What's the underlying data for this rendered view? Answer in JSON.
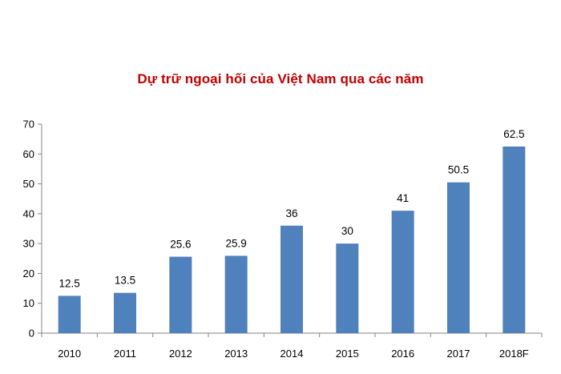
{
  "chart_data": {
    "type": "bar",
    "title": "Dự trữ ngoại hối của Việt Nam qua các năm",
    "xlabel": "",
    "ylabel": "",
    "categories": [
      "2010",
      "2011",
      "2012",
      "2013",
      "2014",
      "2015",
      "2016",
      "2017",
      "2018F"
    ],
    "values": [
      12.5,
      13.5,
      25.6,
      25.9,
      36,
      30,
      41,
      50.5,
      62.5
    ],
    "data_labels": [
      "12.5",
      "13.5",
      "25.6",
      "25.9",
      "36",
      "30",
      "41",
      "50.5",
      "62.5"
    ],
    "ylim": [
      0,
      70
    ],
    "yticks": [
      0,
      10,
      20,
      30,
      40,
      50,
      60,
      70
    ],
    "grid": false,
    "legend": "none",
    "bar_color": "#4f81bd"
  }
}
